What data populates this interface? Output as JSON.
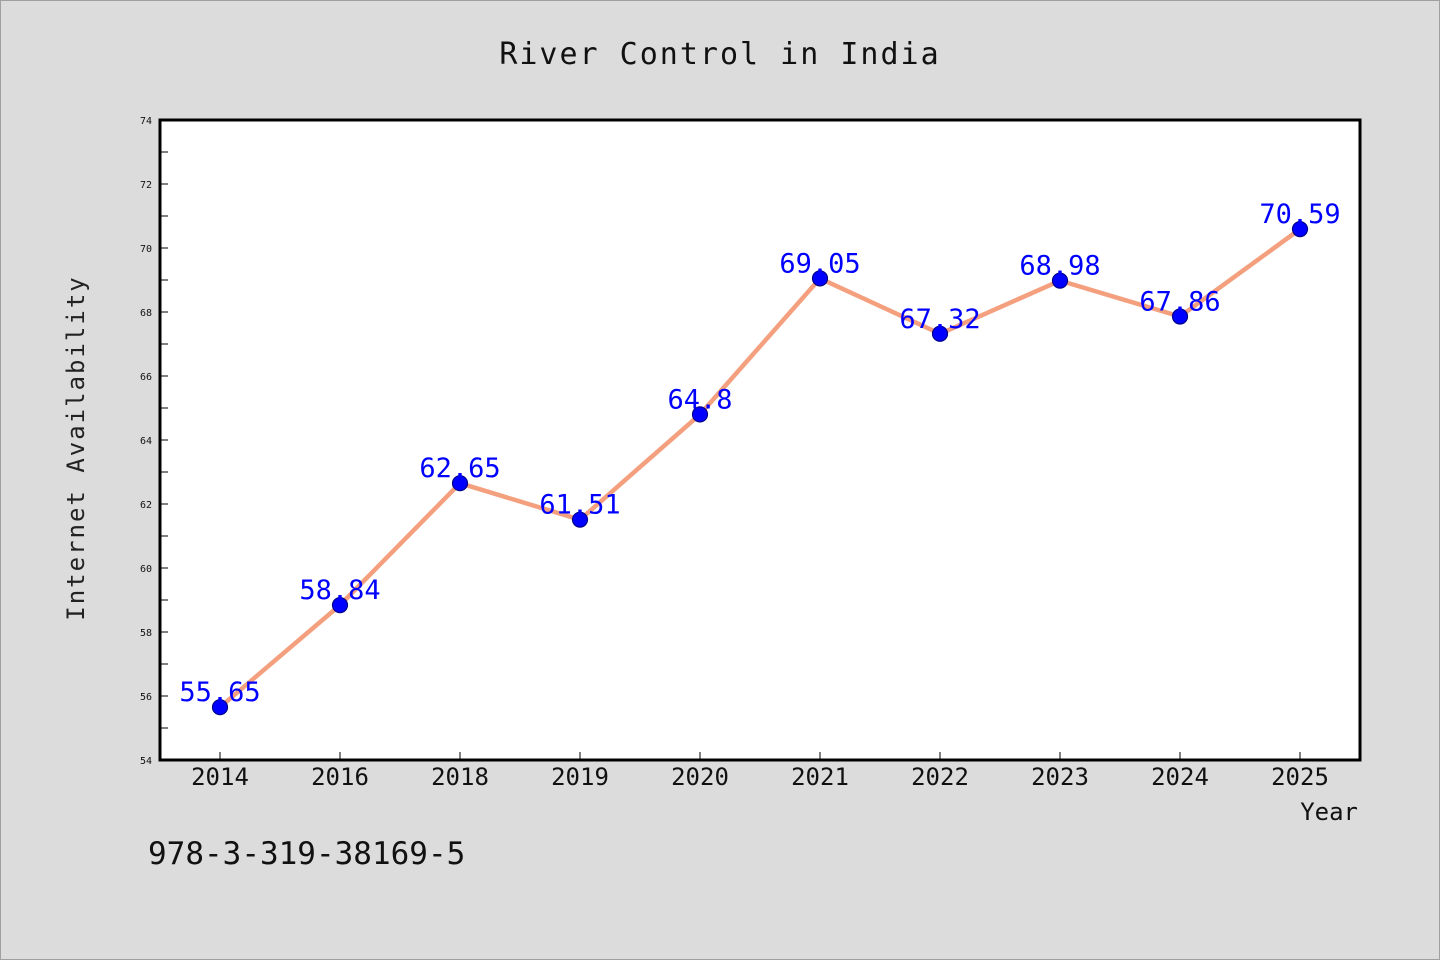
{
  "chart_data": {
    "type": "line",
    "title": "River Control in India",
    "xlabel": "Year",
    "ylabel": "Internet Availability",
    "categories": [
      "2014",
      "2016",
      "2018",
      "2019",
      "2020",
      "2021",
      "2022",
      "2023",
      "2024",
      "2025"
    ],
    "values": [
      55.65,
      58.84,
      62.65,
      61.51,
      64.8,
      69.05,
      67.32,
      68.98,
      67.86,
      70.59
    ],
    "data_labels": [
      "55.65",
      "58.84",
      "62.65",
      "61.51",
      "64.8",
      "69.05",
      "67.32",
      "68.98",
      "67.86",
      "70.59"
    ],
    "ylim": [
      54,
      74
    ],
    "yticks": [
      "54",
      "56",
      "58",
      "60",
      "62",
      "64",
      "66",
      "68",
      "70",
      "72",
      "74"
    ],
    "grid": false,
    "colors": {
      "line": "#f4a07e",
      "marker": "#0000ff",
      "marker_edge": "#00008b",
      "data_label": "#0000ff",
      "background": "#dcdcdc",
      "plot_bg": "#ffffff"
    }
  },
  "footer": {
    "code": "978-3-319-38169-5"
  }
}
